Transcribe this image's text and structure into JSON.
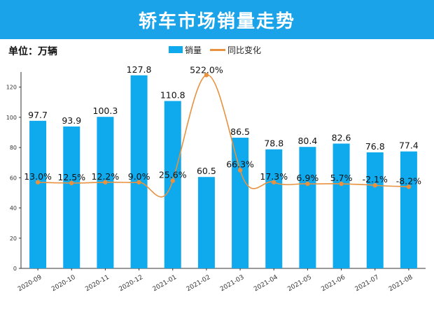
{
  "header": {
    "title": "轿车市场销量走势",
    "unit": "单位：万辆"
  },
  "colors": {
    "header_bg": "#1aa3e8",
    "bar": "#0eaaed",
    "line": "#e8913f",
    "marker": "#e8913f"
  },
  "chart_data": {
    "type": "bar",
    "title": "轿车市场销量走势",
    "xlabel": "",
    "ylabel": "单位：万辆",
    "ylim": [
      0,
      130
    ],
    "yticks": [
      0,
      20,
      40,
      60,
      80,
      100,
      120
    ],
    "grid": false,
    "legend_position": "top-center",
    "categories": [
      "2020-09",
      "2020-10",
      "2020-11",
      "2020-12",
      "2021-01",
      "2021-02",
      "2021-03",
      "2021-04",
      "2021-05",
      "2021-06",
      "2021-07",
      "2021-08"
    ],
    "series": [
      {
        "name": "销量",
        "type": "bar",
        "values": [
          97.7,
          93.9,
          100.3,
          127.8,
          110.8,
          60.5,
          86.5,
          78.8,
          80.4,
          82.6,
          76.8,
          77.4
        ],
        "labels": [
          "97.7",
          "93.9",
          "100.3",
          "127.8",
          "110.8",
          "60.5",
          "86.5",
          "78.8",
          "80.4",
          "82.6",
          "76.8",
          "77.4"
        ]
      },
      {
        "name": "同比变化",
        "type": "line",
        "values_pct": [
          13.0,
          12.5,
          12.2,
          9.0,
          25.6,
          522.0,
          66.3,
          17.3,
          6.9,
          5.7,
          -2.1,
          -8.2
        ],
        "plotted_on_primary_axis": [
          57,
          56.5,
          57,
          57,
          58,
          128,
          65,
          57,
          56,
          56,
          55,
          54
        ],
        "labels": [
          "13.0%",
          "12.5%",
          "12.2%",
          "9.0%",
          "25.6%",
          "522.0%",
          "66.3%",
          "17.3%",
          "6.9%",
          "5.7%",
          "-2.1%",
          "-8.2%"
        ]
      }
    ]
  }
}
